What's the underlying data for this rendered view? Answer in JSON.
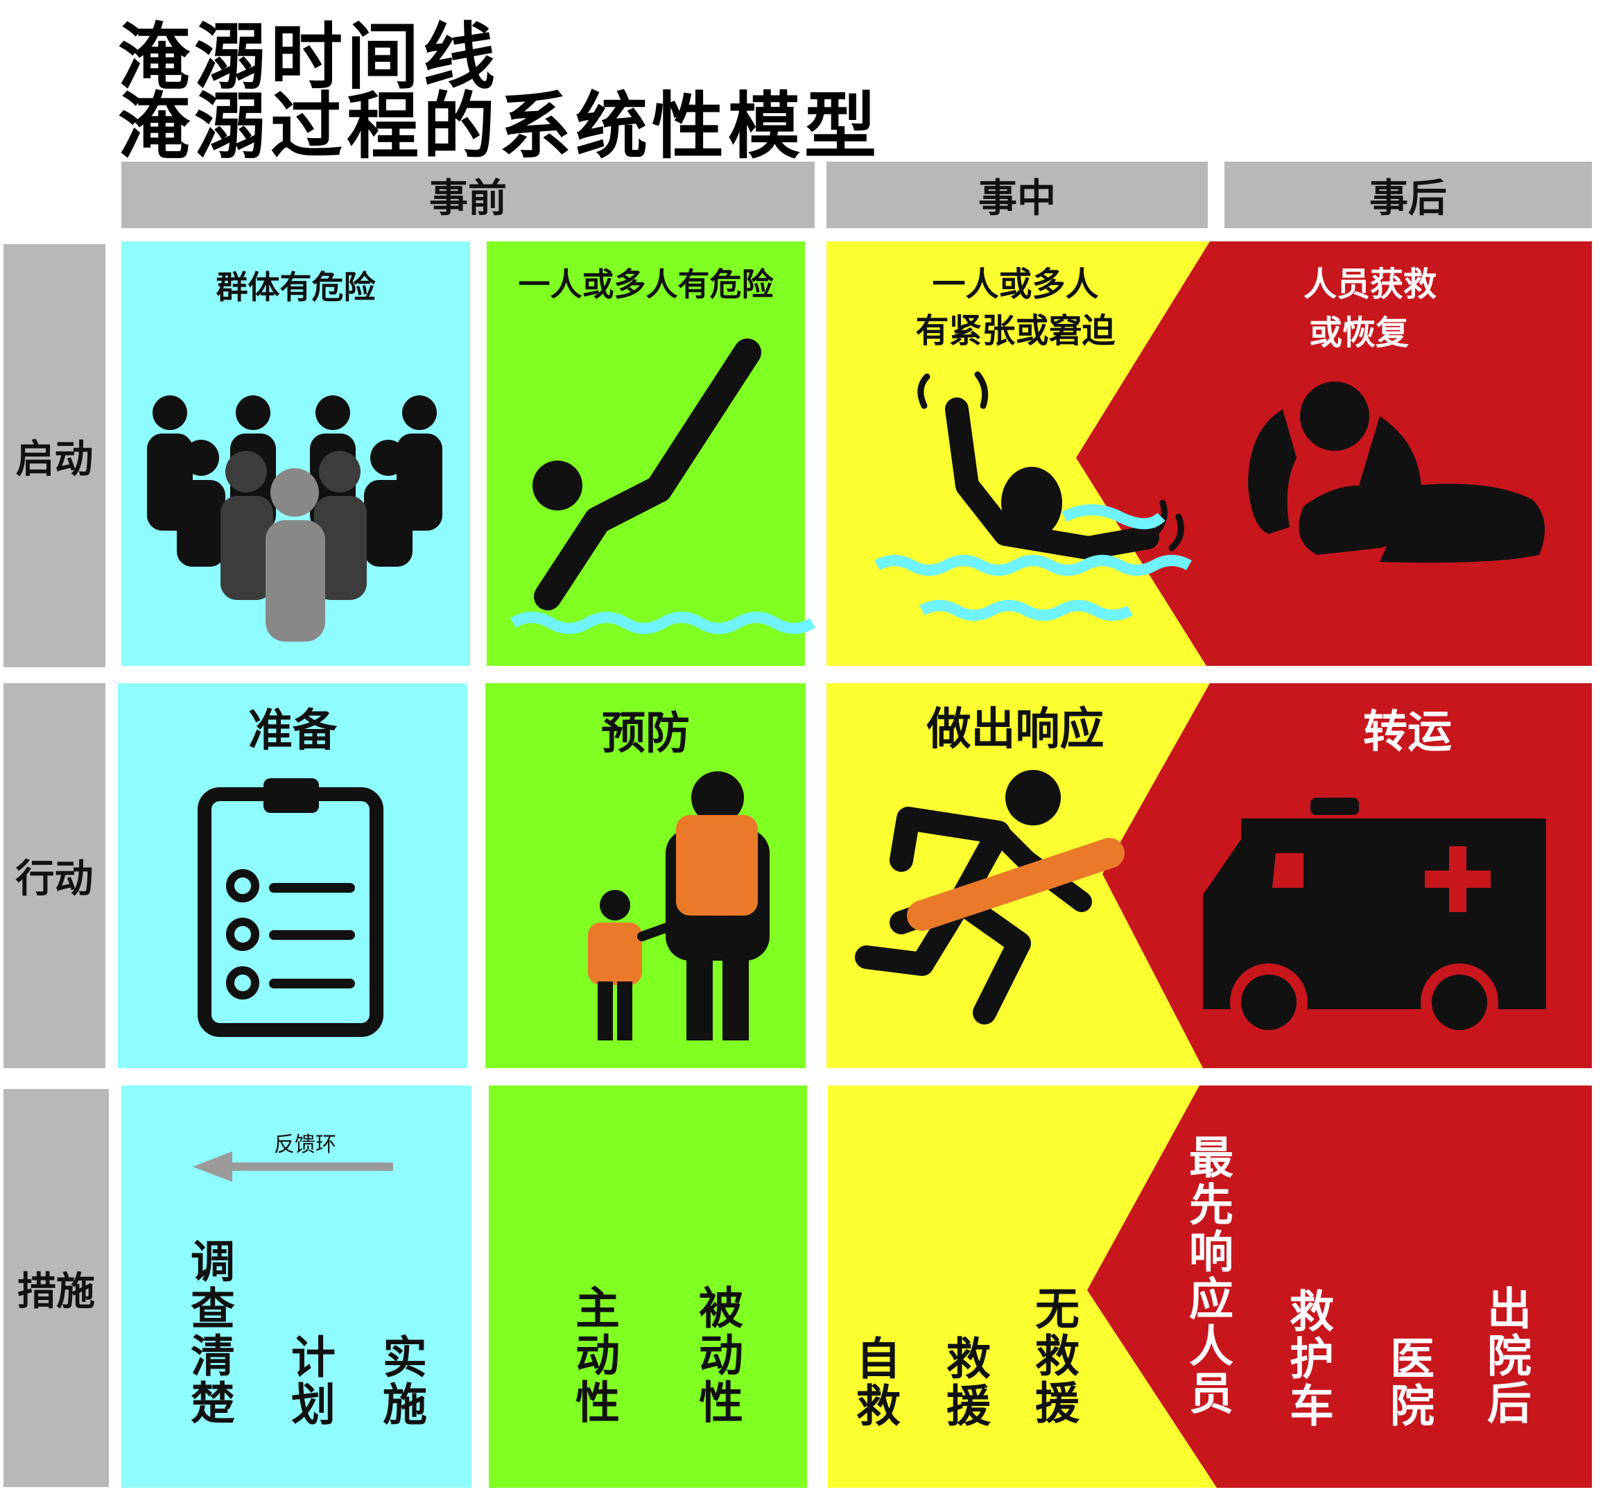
{
  "title": {
    "line1": "淹溺时间线",
    "line2": "淹溺过程的系统性模型"
  },
  "phases": {
    "before": "事前",
    "during": "事中",
    "after": "事后"
  },
  "rows": {
    "trigger": "启动",
    "action": "行动",
    "measures": "措施"
  },
  "trigger_row": {
    "group_risk": "群体有危险",
    "individual_risk": "一人或多人有危险",
    "distress_line1": "一人或多人",
    "distress_line2": "有紧张或窘迫",
    "rescued_line1": "人员获救",
    "rescued_line2": "或恢复"
  },
  "action_row": {
    "prepare": "准备",
    "prevent": "预防",
    "respond": "做出响应",
    "transport": "转运"
  },
  "measures_row": {
    "feedback_loop": "反馈环",
    "prepare_items": [
      "调查清楚",
      "计划",
      "实施"
    ],
    "prevent_items": [
      "主动性",
      "被动性"
    ],
    "respond_items": [
      "自救",
      "救援",
      "无救援"
    ],
    "transport_items": [
      "最先响应人员",
      "救护车",
      "医院",
      "出院后"
    ]
  },
  "colors": {
    "header_gray": "#b8b8b8",
    "cyan": "#8ffcff",
    "green": "#80ff22",
    "yellow": "#fbff30",
    "red": "#c8161d",
    "orange": "#ea7a2a"
  },
  "icons": [
    "crowd-icon",
    "diver-icon",
    "drowning-person-icon",
    "recovery-position-icon",
    "clipboard-checklist-icon",
    "life-jacket-family-icon",
    "lifeguard-running-icon",
    "ambulance-icon"
  ]
}
